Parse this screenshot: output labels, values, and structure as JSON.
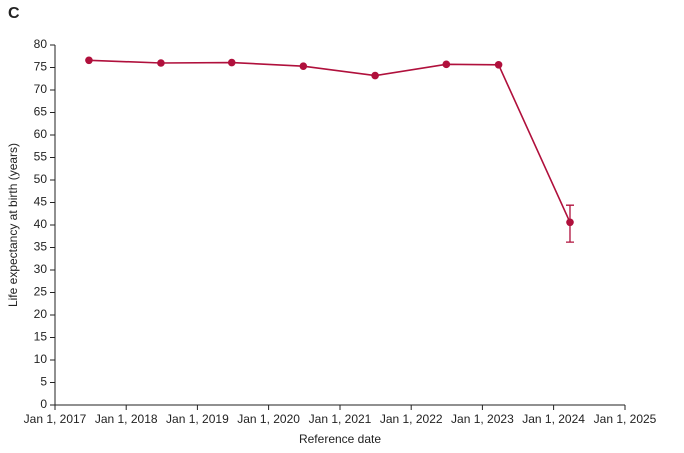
{
  "chart_data": {
    "type": "line",
    "title": "C",
    "x_label": "Reference date",
    "y_label": "Life expectancy at birth (years)",
    "x": [
      "2017-06-24",
      "2018-06-28",
      "2019-06-26",
      "2020-06-27",
      "2021-06-30",
      "2022-06-30",
      "2023-03-25",
      "2024-03-25"
    ],
    "series": [
      {
        "name": "Life expectancy",
        "color": "#b0103c",
        "values": [
          76.6,
          76.0,
          76.1,
          75.3,
          73.2,
          75.7,
          75.6,
          40.6
        ],
        "lower": [
          null,
          null,
          null,
          null,
          null,
          null,
          null,
          36.2
        ],
        "upper": [
          null,
          null,
          null,
          null,
          null,
          null,
          null,
          44.4
        ]
      }
    ],
    "xlim": [
      "2017-01-01",
      "2025-01-01"
    ],
    "xticks": [
      {
        "value": "2017-01-01",
        "label": "Jan 1, 2017"
      },
      {
        "value": "2018-01-01",
        "label": "Jan 1, 2018"
      },
      {
        "value": "2019-01-01",
        "label": "Jan 1, 2019"
      },
      {
        "value": "2020-01-01",
        "label": "Jan 1, 2020"
      },
      {
        "value": "2021-01-01",
        "label": "Jan 1, 2021"
      },
      {
        "value": "2022-01-01",
        "label": "Jan 1, 2022"
      },
      {
        "value": "2023-01-01",
        "label": "Jan 1, 2023"
      },
      {
        "value": "2024-01-01",
        "label": "Jan 1, 2024"
      },
      {
        "value": "2025-01-01",
        "label": "Jan 1, 2025"
      }
    ],
    "ylim": [
      0,
      80
    ],
    "yticks": [
      0,
      5,
      10,
      15,
      20,
      25,
      30,
      35,
      40,
      45,
      50,
      55,
      60,
      65,
      70,
      75,
      80
    ],
    "grid": false
  }
}
